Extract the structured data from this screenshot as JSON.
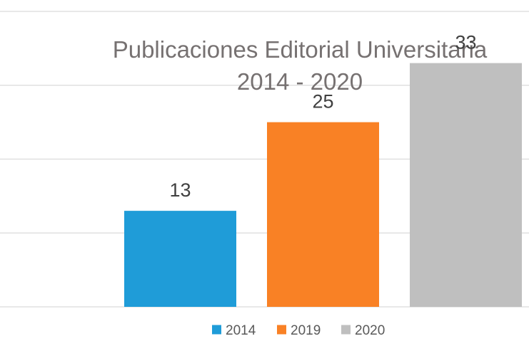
{
  "chart_data": {
    "type": "bar",
    "title_lines": [
      "Publicaciones Editorial Universitaria",
      "2014 - 2020"
    ],
    "categories": [
      "2014",
      "2019",
      "2020"
    ],
    "values": [
      13,
      25,
      33
    ],
    "colors": [
      "#1f9cd8",
      "#f98125",
      "#bfbfbf"
    ],
    "gridline_color": "#e0e0e0",
    "ylim": [
      0,
      40
    ],
    "grid": true,
    "legend_position": "bottom"
  }
}
